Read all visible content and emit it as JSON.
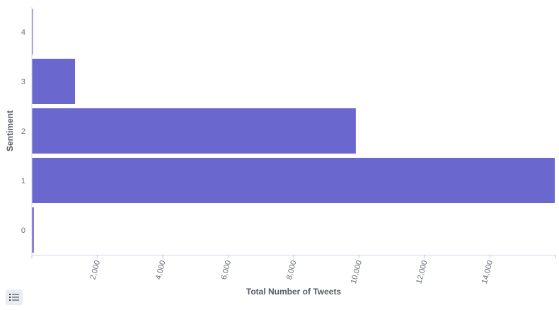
{
  "chart_data": {
    "type": "bar",
    "orientation": "horizontal",
    "categories": [
      "0",
      "1",
      "2",
      "3",
      "4"
    ],
    "values": [
      60,
      15980,
      9900,
      1320,
      20
    ],
    "xlabel": "Total Number of Tweets",
    "ylabel": "Sentiment",
    "xlim": [
      0,
      16000
    ],
    "x_ticks": [
      2000,
      4000,
      6000,
      8000,
      10000,
      12000,
      14000
    ],
    "x_tick_labels": [
      "2,000",
      "4,000",
      "6,000",
      "8,000",
      "10,000",
      "12,000",
      "14,000"
    ],
    "grid": false,
    "bar_color": "#6a67ce"
  },
  "controls": {
    "legend_toggle_icon": "list-icon"
  }
}
